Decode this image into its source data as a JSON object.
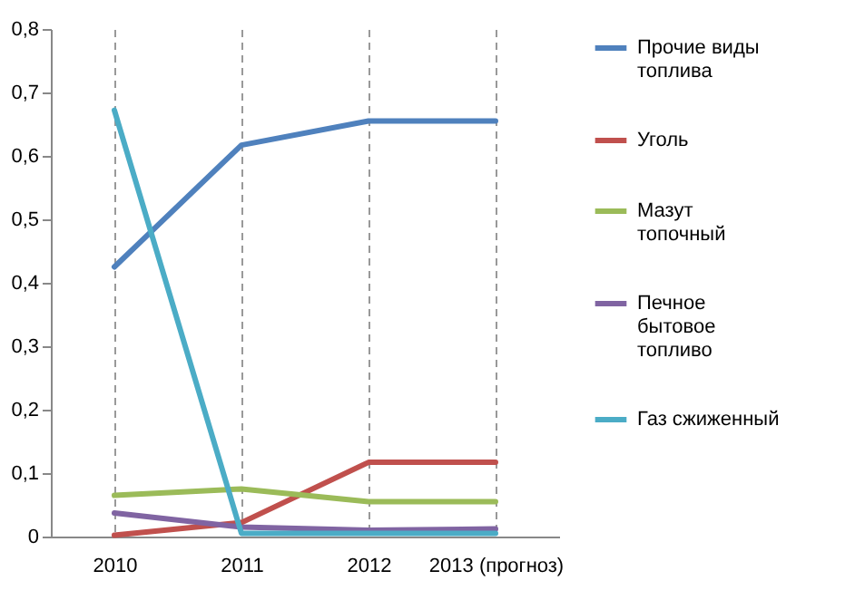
{
  "chart_data": {
    "type": "line",
    "categories": [
      "2010",
      "2011",
      "2012",
      "2013 (прогноз)"
    ],
    "series": [
      {
        "name": "Прочие виды топлива",
        "color": "#4f81bd",
        "values": [
          0.425,
          0.617,
          0.655,
          0.655
        ]
      },
      {
        "name": "Уголь",
        "color": "#c0504d",
        "values": [
          0.002,
          0.022,
          0.117,
          0.117
        ]
      },
      {
        "name": "Мазут топочный",
        "color": "#9bbb59",
        "values": [
          0.065,
          0.075,
          0.055,
          0.055
        ]
      },
      {
        "name": "Печное бытовое топливо",
        "color": "#8064a2",
        "values": [
          0.037,
          0.015,
          0.01,
          0.012
        ]
      },
      {
        "name": "Газ сжиженный",
        "color": "#4bacc6",
        "values": [
          0.672,
          0.005,
          0.005,
          0.005
        ]
      }
    ],
    "ylim": [
      0,
      0.8
    ],
    "yticks": [
      {
        "value": 0,
        "label": "0"
      },
      {
        "value": 0.1,
        "label": "0,1"
      },
      {
        "value": 0.2,
        "label": "0,2"
      },
      {
        "value": 0.3,
        "label": "0,3"
      },
      {
        "value": 0.4,
        "label": "0,4"
      },
      {
        "value": 0.5,
        "label": "0,5"
      },
      {
        "value": 0.6,
        "label": "0,6"
      },
      {
        "value": 0.7,
        "label": "0,7"
      },
      {
        "value": 0.8,
        "label": "0,8"
      }
    ],
    "grid": "x",
    "legend": "right",
    "marker": "none",
    "line_style": "solid"
  }
}
